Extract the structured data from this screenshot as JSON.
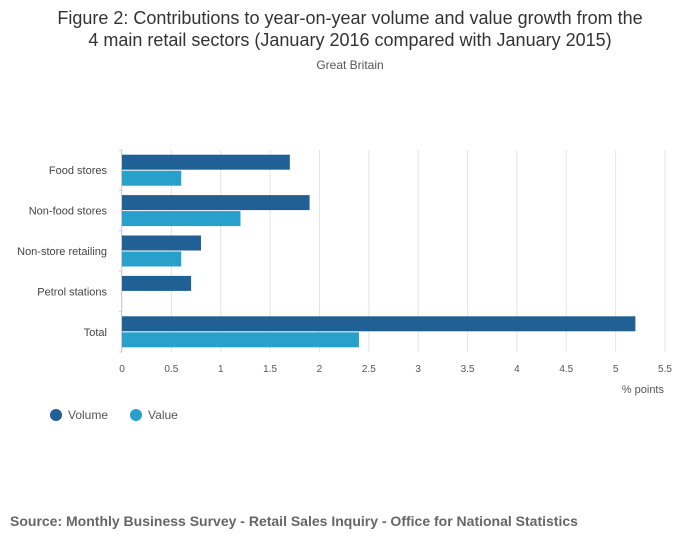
{
  "header": {
    "title_line1": "Figure 2: Contributions to year-on-year volume and value growth from the",
    "title_line2": "4 main retail sectors (January 2016 compared with January 2015)",
    "subtitle": "Great Britain"
  },
  "footer": {
    "source": "Source: Monthly Business Survey - Retail Sales Inquiry - Office for National Statistics"
  },
  "chart_data": {
    "type": "bar",
    "orientation": "horizontal",
    "categories": [
      "Food stores",
      "Non-food stores",
      "Non-store retailing",
      "Petrol stations",
      "Total"
    ],
    "series": [
      {
        "name": "Volume",
        "color": "#206095",
        "values": [
          1.7,
          1.9,
          0.8,
          0.7,
          5.2
        ]
      },
      {
        "name": "Value",
        "color": "#27a0cc",
        "values": [
          0.6,
          1.2,
          0.6,
          null,
          2.4
        ]
      }
    ],
    "xlabel": "% points",
    "ylabel": "",
    "xlim": [
      0,
      5.5
    ],
    "x_ticks": [
      "0",
      "0.5",
      "1",
      "1.5",
      "2",
      "2.5",
      "3",
      "3.5",
      "4",
      "4.5",
      "5",
      "5.5"
    ],
    "grid": true,
    "legend_position": "bottom-left"
  }
}
